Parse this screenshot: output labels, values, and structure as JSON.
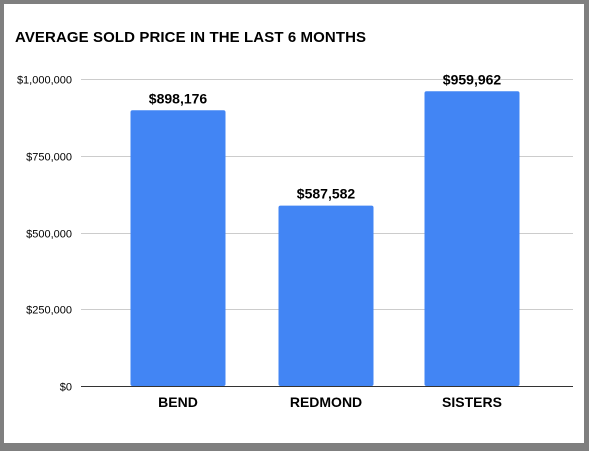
{
  "chart_data": {
    "type": "bar",
    "title": "AVERAGE SOLD PRICE IN THE LAST 6 MONTHS",
    "categories": [
      "BEND",
      "REDMOND",
      "SISTERS"
    ],
    "values": [
      898176,
      587582,
      959962
    ],
    "data_labels": [
      "$898,176",
      "$587,582",
      "$959,962"
    ],
    "ylim": [
      0,
      1000000
    ],
    "yticks": [
      0,
      250000,
      500000,
      750000,
      1000000
    ],
    "ytick_labels": [
      "$0",
      "$250,000",
      "$500,000",
      "$750,000",
      "$1,000,000"
    ],
    "xlabel": "",
    "ylabel": "",
    "grid": true,
    "legend": "none",
    "bar_color": "#4285f4",
    "grid_color": "#cccccc",
    "axis_color": "#333333",
    "frame_color": "#7f7f7f"
  }
}
